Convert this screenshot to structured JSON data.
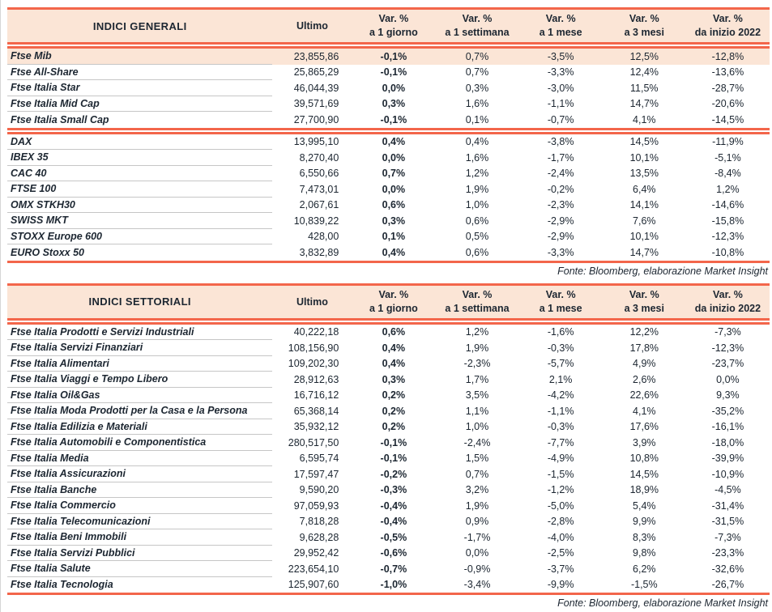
{
  "palette": {
    "header_bg": "#fbe5d6",
    "accent_red": "#f3664b",
    "ink": "#1c2631",
    "row_separator": "#c6c6c6"
  },
  "headers": {
    "ultimo": "Ultimo",
    "var_label": "Var. %",
    "periods": [
      "a 1 giorno",
      "a 1 settimana",
      "a 1 mese",
      "a 3 mesi",
      "da inizio 2022"
    ]
  },
  "tables": [
    {
      "title": "INDICI GENERALI",
      "source_note": "Fonte: Bloomberg, elaborazione Market Insight",
      "groups": [
        {
          "rows": [
            {
              "name": "Ftse Mib",
              "ultimo": "23,855,86",
              "vars": [
                "-0,1%",
                "0,7%",
                "-3,5%",
                "12,5%",
                "-12,8%"
              ],
              "highlight": true
            },
            {
              "name": "Ftse All-Share",
              "ultimo": "25,865,29",
              "vars": [
                "-0,1%",
                "0,7%",
                "-3,3%",
                "12,4%",
                "-13,6%"
              ]
            },
            {
              "name": "Ftse Italia Star",
              "ultimo": "46,044,39",
              "vars": [
                "0,0%",
                "0,3%",
                "-3,0%",
                "11,5%",
                "-28,7%"
              ]
            },
            {
              "name": "Ftse Italia Mid Cap",
              "ultimo": "39,571,69",
              "vars": [
                "0,3%",
                "1,6%",
                "-1,1%",
                "14,7%",
                "-20,6%"
              ]
            },
            {
              "name": "Ftse Italia Small Cap",
              "ultimo": "27,700,90",
              "vars": [
                "-0,1%",
                "0,1%",
                "-0,7%",
                "4,1%",
                "-14,5%"
              ]
            }
          ]
        },
        {
          "rows": [
            {
              "name": "DAX",
              "ultimo": "13,995,10",
              "vars": [
                "0,4%",
                "0,4%",
                "-3,8%",
                "14,5%",
                "-11,9%"
              ]
            },
            {
              "name": "IBEX 35",
              "ultimo": "8,270,40",
              "vars": [
                "0,0%",
                "1,6%",
                "-1,7%",
                "10,1%",
                "-5,1%"
              ]
            },
            {
              "name": "CAC 40",
              "ultimo": "6,550,66",
              "vars": [
                "0,7%",
                "1,2%",
                "-2,4%",
                "13,5%",
                "-8,4%"
              ]
            },
            {
              "name": "FTSE 100",
              "ultimo": "7,473,01",
              "vars": [
                "0,0%",
                "1,9%",
                "-0,2%",
                "6,4%",
                "1,2%"
              ]
            },
            {
              "name": "OMX STKH30",
              "ultimo": "2,067,61",
              "vars": [
                "0,6%",
                "1,0%",
                "-2,3%",
                "14,1%",
                "-14,6%"
              ]
            },
            {
              "name": "SWISS MKT",
              "ultimo": "10,839,22",
              "vars": [
                "0,3%",
                "0,6%",
                "-2,9%",
                "7,6%",
                "-15,8%"
              ]
            },
            {
              "name": "STOXX Europe 600",
              "ultimo": "428,00",
              "vars": [
                "0,1%",
                "0,5%",
                "-2,9%",
                "10,1%",
                "-12,3%"
              ]
            },
            {
              "name": "EURO Stoxx 50",
              "ultimo": "3,832,89",
              "vars": [
                "0,4%",
                "0,6%",
                "-3,3%",
                "14,7%",
                "-10,8%"
              ]
            }
          ]
        }
      ]
    },
    {
      "title": "INDICI SETTORIALI",
      "source_note": "Fonte: Bloomberg, elaborazione Market Insight",
      "groups": [
        {
          "rows": [
            {
              "name": "Ftse Italia Prodotti e Servizi Industriali",
              "ultimo": "40,222,18",
              "vars": [
                "0,6%",
                "1,2%",
                "-1,6%",
                "12,2%",
                "-7,3%"
              ]
            },
            {
              "name": "Ftse Italia Servizi Finanziari",
              "ultimo": "108,156,90",
              "vars": [
                "0,4%",
                "1,9%",
                "-0,3%",
                "17,8%",
                "-12,3%"
              ]
            },
            {
              "name": "Ftse Italia Alimentari",
              "ultimo": "109,202,30",
              "vars": [
                "0,4%",
                "-2,3%",
                "-5,7%",
                "4,9%",
                "-23,7%"
              ]
            },
            {
              "name": "Ftse Italia Viaggi e Tempo Libero",
              "ultimo": "28,912,63",
              "vars": [
                "0,3%",
                "1,7%",
                "2,1%",
                "2,6%",
                "0,0%"
              ]
            },
            {
              "name": "Ftse Italia Oil&Gas",
              "ultimo": "16,716,12",
              "vars": [
                "0,2%",
                "3,5%",
                "-4,2%",
                "22,6%",
                "9,3%"
              ]
            },
            {
              "name": "Ftse Italia Moda Prodotti per la Casa e la Persona",
              "ultimo": "65,368,14",
              "vars": [
                "0,2%",
                "1,1%",
                "-1,1%",
                "4,1%",
                "-35,2%"
              ]
            },
            {
              "name": "Ftse Italia Edilizia e Materiali",
              "ultimo": "35,932,12",
              "vars": [
                "0,2%",
                "1,0%",
                "-0,3%",
                "17,6%",
                "-16,1%"
              ]
            },
            {
              "name": "Ftse Italia Automobili e Componentistica",
              "ultimo": "280,517,50",
              "vars": [
                "-0,1%",
                "-2,4%",
                "-7,7%",
                "3,9%",
                "-18,0%"
              ]
            },
            {
              "name": "Ftse Italia Media",
              "ultimo": "6,595,74",
              "vars": [
                "-0,1%",
                "1,5%",
                "-4,9%",
                "10,8%",
                "-39,9%"
              ]
            },
            {
              "name": "Ftse Italia Assicurazioni",
              "ultimo": "17,597,47",
              "vars": [
                "-0,2%",
                "0,7%",
                "-1,5%",
                "14,5%",
                "-10,9%"
              ]
            },
            {
              "name": "Ftse Italia Banche",
              "ultimo": "9,590,20",
              "vars": [
                "-0,3%",
                "3,2%",
                "-1,2%",
                "18,9%",
                "-4,5%"
              ]
            },
            {
              "name": "Ftse Italia Commercio",
              "ultimo": "97,059,93",
              "vars": [
                "-0,4%",
                "1,9%",
                "-5,0%",
                "5,4%",
                "-31,4%"
              ]
            },
            {
              "name": "Ftse Italia Telecomunicazioni",
              "ultimo": "7,818,28",
              "vars": [
                "-0,4%",
                "0,9%",
                "-2,8%",
                "9,9%",
                "-31,5%"
              ]
            },
            {
              "name": "Ftse Italia Beni Immobili",
              "ultimo": "9,628,28",
              "vars": [
                "-0,5%",
                "-1,7%",
                "-4,0%",
                "8,3%",
                "-7,3%"
              ]
            },
            {
              "name": "Ftse Italia Servizi Pubblici",
              "ultimo": "29,952,42",
              "vars": [
                "-0,6%",
                "0,0%",
                "-2,5%",
                "9,8%",
                "-23,3%"
              ]
            },
            {
              "name": "Ftse Italia Salute",
              "ultimo": "223,654,10",
              "vars": [
                "-0,7%",
                "-0,9%",
                "-3,7%",
                "6,2%",
                "-32,6%"
              ]
            },
            {
              "name": "Ftse Italia Tecnologia",
              "ultimo": "125,907,60",
              "vars": [
                "-1,0%",
                "-3,4%",
                "-9,9%",
                "-1,5%",
                "-26,7%"
              ]
            }
          ]
        }
      ]
    }
  ]
}
